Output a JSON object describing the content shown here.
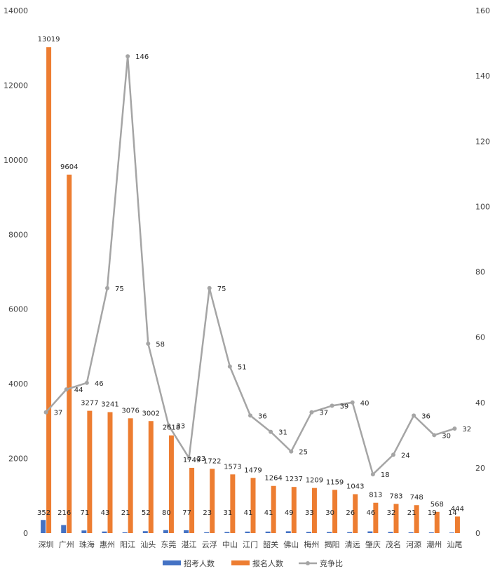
{
  "chart_data": {
    "type": "bar",
    "categories": [
      "深圳",
      "广州",
      "珠海",
      "惠州",
      "阳江",
      "汕头",
      "东莞",
      "湛江",
      "云浮",
      "中山",
      "江门",
      "韶关",
      "佛山",
      "梅州",
      "揭阳",
      "清远",
      "肇庆",
      "茂名",
      "河源",
      "潮州",
      "汕尾"
    ],
    "series": [
      {
        "name": "招考人数",
        "type": "bar",
        "axis": "left",
        "color": "#4472C4",
        "values": [
          352,
          216,
          71,
          43,
          21,
          52,
          80,
          77,
          23,
          31,
          41,
          41,
          49,
          33,
          30,
          26,
          46,
          32,
          21,
          19,
          14
        ]
      },
      {
        "name": "报名人数",
        "type": "bar",
        "axis": "left",
        "color": "#ED7D31",
        "values": [
          13019,
          9604,
          3277,
          3241,
          3076,
          3002,
          2618,
          1749,
          1722,
          1573,
          1479,
          1264,
          1237,
          1209,
          1159,
          1043,
          813,
          783,
          748,
          568,
          444
        ]
      },
      {
        "name": "竞争比",
        "type": "line",
        "axis": "right",
        "color": "#A5A5A5",
        "values": [
          37,
          44,
          46,
          75,
          146,
          58,
          33,
          23,
          75,
          51,
          36,
          31,
          25,
          37,
          39,
          40,
          18,
          24,
          36,
          30,
          32
        ]
      }
    ],
    "y_left": {
      "min": 0,
      "max": 14000,
      "ticks": [
        "0",
        "2000",
        "4000",
        "6000",
        "8000",
        "10000",
        "12000",
        "14000"
      ]
    },
    "y_right": {
      "min": 0,
      "max": 160,
      "ticks": [
        "0",
        "20",
        "40",
        "60",
        "80",
        "100",
        "120",
        "140",
        "160"
      ]
    },
    "legend": {
      "position": "bottom",
      "labels": [
        "招考人数",
        "报名人数",
        "竞争比"
      ]
    },
    "grid": false
  }
}
